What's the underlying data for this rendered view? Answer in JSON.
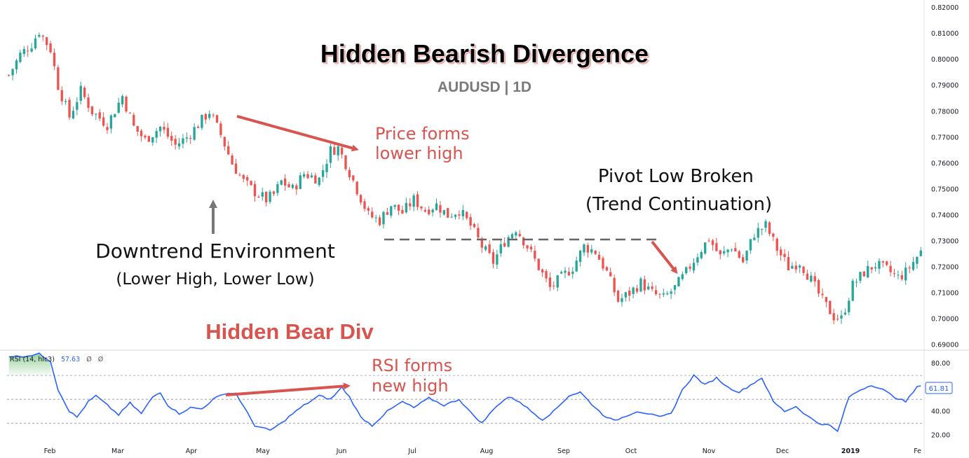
{
  "title": "Hidden Bearish Divergence",
  "subtitle": "AUDUSD | 1D",
  "colors": {
    "bull": "#26a69a",
    "bear": "#ef5350",
    "annotation_red": "#d9534f",
    "rsi_line": "#2962ff",
    "gray_arrow": "#777777",
    "dashed_line": "#666666"
  },
  "annotations": {
    "price_lower_high": [
      "Price forms",
      "lower high"
    ],
    "pivot_low": [
      "Pivot Low Broken",
      "(Trend Continuation)"
    ],
    "downtrend": [
      "Downtrend Environment",
      "(Lower High, Lower Low)"
    ],
    "hidden_bear_div": "Hidden Bear Div",
    "rsi_new_high": [
      "RSI forms",
      "new high"
    ]
  },
  "rsi_header": {
    "label": "RSI (14, hlc3)",
    "value": "57.63",
    "extra1": "Ø",
    "extra2": "Ø"
  },
  "rsi_last_badge": "61.81",
  "x_axis_labels": [
    "Feb",
    "Mar",
    "Apr",
    "May",
    "Jun",
    "Jul",
    "Aug",
    "Sep",
    "Oct",
    "Nov",
    "Dec",
    "2019",
    "Fe"
  ],
  "chart_data": {
    "type": "candlestick",
    "price_axis": {
      "ticks": [
        "0.82000",
        "0.81000",
        "0.80000",
        "0.79000",
        "0.78000",
        "0.77000",
        "0.76000",
        "0.75000",
        "0.74000",
        "0.73000",
        "0.72000",
        "0.71000",
        "0.70000",
        "0.69000"
      ],
      "range": [
        0.688,
        0.823
      ]
    },
    "price_path": [
      [
        0,
        0.794
      ],
      [
        3,
        0.802
      ],
      [
        6,
        0.806
      ],
      [
        8,
        0.811
      ],
      [
        11,
        0.804
      ],
      [
        13,
        0.79
      ],
      [
        16,
        0.778
      ],
      [
        19,
        0.788
      ],
      [
        22,
        0.78
      ],
      [
        26,
        0.775
      ],
      [
        30,
        0.786
      ],
      [
        33,
        0.774
      ],
      [
        36,
        0.769
      ],
      [
        40,
        0.774
      ],
      [
        44,
        0.767
      ],
      [
        47,
        0.77
      ],
      [
        50,
        0.775
      ],
      [
        53,
        0.78
      ],
      [
        56,
        0.771
      ],
      [
        59,
        0.76
      ],
      [
        62,
        0.753
      ],
      [
        65,
        0.749
      ],
      [
        68,
        0.746
      ],
      [
        70,
        0.748
      ],
      [
        72,
        0.753
      ],
      [
        75,
        0.75
      ],
      [
        78,
        0.756
      ],
      [
        82,
        0.754
      ],
      [
        85,
        0.765
      ],
      [
        87,
        0.766
      ],
      [
        89,
        0.76
      ],
      [
        92,
        0.75
      ],
      [
        95,
        0.74
      ],
      [
        98,
        0.738
      ],
      [
        101,
        0.744
      ],
      [
        104,
        0.741
      ],
      [
        107,
        0.746
      ],
      [
        110,
        0.742
      ],
      [
        113,
        0.744
      ],
      [
        116,
        0.74
      ],
      [
        119,
        0.742
      ],
      [
        122,
        0.736
      ],
      [
        125,
        0.728
      ],
      [
        128,
        0.722
      ],
      [
        131,
        0.73
      ],
      [
        134,
        0.735
      ],
      [
        137,
        0.728
      ],
      [
        140,
        0.72
      ],
      [
        143,
        0.712
      ],
      [
        146,
        0.716
      ],
      [
        149,
        0.72
      ],
      [
        152,
        0.728
      ],
      [
        155,
        0.726
      ],
      [
        158,
        0.718
      ],
      [
        161,
        0.707
      ],
      [
        164,
        0.71
      ],
      [
        167,
        0.714
      ],
      [
        170,
        0.71
      ],
      [
        173,
        0.708
      ],
      [
        176,
        0.712
      ],
      [
        179,
        0.718
      ],
      [
        182,
        0.725
      ],
      [
        185,
        0.731
      ],
      [
        188,
        0.724
      ],
      [
        191,
        0.728
      ],
      [
        194,
        0.722
      ],
      [
        197,
        0.733
      ],
      [
        200,
        0.736
      ],
      [
        203,
        0.727
      ],
      [
        206,
        0.72
      ],
      [
        209,
        0.722
      ],
      [
        212,
        0.715
      ],
      [
        215,
        0.707
      ],
      [
        218,
        0.701
      ],
      [
        220,
        0.7
      ],
      [
        223,
        0.713
      ],
      [
        226,
        0.718
      ],
      [
        229,
        0.721
      ],
      [
        232,
        0.719
      ],
      [
        235,
        0.716
      ],
      [
        237,
        0.718
      ],
      [
        240,
        0.724
      ],
      [
        241,
        0.726
      ]
    ],
    "total_bars": 242,
    "rsi_axis": {
      "ticks": [
        "80.00",
        "60.00",
        "40.00",
        "20.00"
      ],
      "range": [
        12,
        90
      ],
      "levels": [
        70,
        50,
        30
      ]
    },
    "rsi_path": [
      [
        0,
        86
      ],
      [
        4,
        86
      ],
      [
        8,
        88
      ],
      [
        11,
        82
      ],
      [
        13,
        58
      ],
      [
        16,
        40
      ],
      [
        18,
        35
      ],
      [
        21,
        48
      ],
      [
        23,
        53
      ],
      [
        26,
        45
      ],
      [
        29,
        37
      ],
      [
        32,
        47
      ],
      [
        35,
        38
      ],
      [
        38,
        52
      ],
      [
        40,
        56
      ],
      [
        42,
        45
      ],
      [
        45,
        38
      ],
      [
        48,
        43
      ],
      [
        51,
        42
      ],
      [
        54,
        50
      ],
      [
        57,
        55
      ],
      [
        60,
        55
      ],
      [
        62,
        44
      ],
      [
        65,
        28
      ],
      [
        69,
        24
      ],
      [
        72,
        30
      ],
      [
        75,
        38
      ],
      [
        78,
        45
      ],
      [
        82,
        53
      ],
      [
        85,
        50
      ],
      [
        88,
        60
      ],
      [
        90,
        52
      ],
      [
        93,
        35
      ],
      [
        96,
        28
      ],
      [
        100,
        40
      ],
      [
        104,
        48
      ],
      [
        107,
        43
      ],
      [
        111,
        51
      ],
      [
        115,
        45
      ],
      [
        119,
        50
      ],
      [
        122,
        39
      ],
      [
        125,
        30
      ],
      [
        129,
        45
      ],
      [
        132,
        52
      ],
      [
        135,
        48
      ],
      [
        138,
        40
      ],
      [
        141,
        33
      ],
      [
        144,
        40
      ],
      [
        148,
        53
      ],
      [
        151,
        56
      ],
      [
        154,
        46
      ],
      [
        157,
        37
      ],
      [
        160,
        32
      ],
      [
        163,
        36
      ],
      [
        166,
        40
      ],
      [
        169,
        38
      ],
      [
        172,
        35
      ],
      [
        175,
        38
      ],
      [
        178,
        58
      ],
      [
        181,
        70
      ],
      [
        184,
        62
      ],
      [
        187,
        68
      ],
      [
        190,
        60
      ],
      [
        193,
        56
      ],
      [
        196,
        62
      ],
      [
        199,
        68
      ],
      [
        202,
        48
      ],
      [
        205,
        40
      ],
      [
        208,
        44
      ],
      [
        211,
        36
      ],
      [
        214,
        30
      ],
      [
        217,
        28
      ],
      [
        219,
        23
      ],
      [
        222,
        52
      ],
      [
        225,
        58
      ],
      [
        228,
        62
      ],
      [
        231,
        58
      ],
      [
        234,
        52
      ],
      [
        237,
        48
      ],
      [
        240,
        60
      ],
      [
        241,
        62
      ]
    ]
  }
}
